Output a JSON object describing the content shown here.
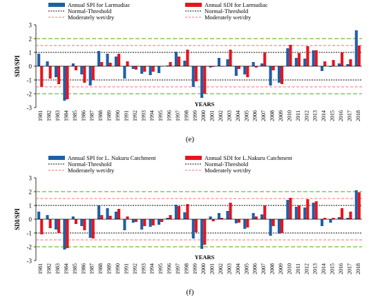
{
  "years": [
    "1981",
    "1982",
    "1983",
    "1984",
    "1985",
    "1986",
    "1987",
    "1988",
    "1989",
    "1990",
    "1991",
    "1992",
    "1993",
    "1994",
    "1995",
    "1996",
    "1997",
    "1998",
    "1999",
    "2000",
    "2001",
    "2002",
    "2003",
    "2004",
    "2005",
    "2006",
    "2007",
    "2008",
    "2009",
    "2010",
    "2011",
    "2012",
    "2013",
    "2014",
    "2015",
    "2016",
    "2017",
    "2018"
  ],
  "colors": {
    "spi": "#1f5fa6",
    "sdi": "#e8141c",
    "normal": "#000000",
    "moderate": "#f26b6b",
    "outer": "#77b82f"
  },
  "chart_data": [
    {
      "type": "bar",
      "panel_label": "(e)",
      "xlabel": "YEARS",
      "ylabel": "SDI/SPI",
      "ylim": [
        -3,
        3
      ],
      "yticks": [
        "-3",
        "-2",
        "-1",
        "0",
        "1",
        "2",
        "3"
      ],
      "thresholds": {
        "outer": [
          2,
          -2
        ],
        "moderate": [
          1.5,
          -1.5
        ],
        "normal": [
          1,
          -1
        ]
      },
      "legend": {
        "spi": "Annual SPI for Larmudiac",
        "sdi": "Annual SDI for Larmudiac",
        "normal": "Normal-Threshold",
        "normal_b": "Normal-Threshold",
        "moderate": "Moderately wet/dry",
        "moderate_b": "Moderately wet/dry"
      },
      "series": [
        {
          "name": "Annual SPI for Larmudiac",
          "values": [
            0.9,
            0.35,
            -0.8,
            -2.5,
            0.2,
            -0.6,
            -1.4,
            1.1,
            0.9,
            0.7,
            -0.9,
            -0.2,
            -0.55,
            -0.65,
            -0.5,
            0.05,
            1.05,
            0.4,
            -1.5,
            -2.3,
            -0.1,
            0.6,
            0.5,
            -0.7,
            -0.6,
            0.3,
            0.2,
            -1.4,
            -1.2,
            1.3,
            0.6,
            0.55,
            1.15,
            -0.35,
            -0.05,
            0.2,
            0.15,
            2.6
          ]
        },
        {
          "name": "Annual SDI for Larmudiac",
          "values": [
            -1.5,
            -0.9,
            -1.3,
            -2.4,
            -0.3,
            -1.2,
            -1.0,
            0.3,
            0.25,
            0.9,
            0.35,
            -0.25,
            -0.4,
            -0.4,
            0.0,
            0.3,
            0.7,
            1.2,
            -1.1,
            -2.0,
            -0.05,
            0.0,
            1.2,
            -0.2,
            -0.8,
            -0.1,
            1.0,
            -0.3,
            -1.3,
            1.55,
            0.95,
            1.45,
            1.15,
            0.35,
            0.45,
            1.0,
            0.5,
            1.5
          ]
        }
      ]
    },
    {
      "type": "bar",
      "panel_label": "(f)",
      "xlabel": "YEARS",
      "ylabel": "SDI/SPI",
      "ylim": [
        -3,
        3
      ],
      "yticks": [
        "-3",
        "-2",
        "-1",
        "0",
        "1",
        "2",
        "3"
      ],
      "thresholds": {
        "outer": [
          2,
          -2
        ],
        "moderate": [
          1.5,
          -1.5
        ],
        "normal": [
          1,
          -1
        ]
      },
      "legend": {
        "spi": "Annual SPI for L. Nakuru Catchment",
        "sdi": "Annual SDI for L.Nakuru Catchment",
        "normal": "Normal-Threshold",
        "normal_b": "Normal-Threshold",
        "moderate": "Moderately wet/dry",
        "moderate_b": "Moderately wet/dry"
      },
      "series": [
        {
          "name": "Annual SPI for L. Nakuru Catchment",
          "values": [
            0.55,
            0.3,
            -0.75,
            -2.2,
            0.2,
            -0.5,
            -1.35,
            1.0,
            0.8,
            0.55,
            -0.8,
            -0.25,
            -0.75,
            -0.55,
            -0.4,
            0.1,
            1.05,
            0.5,
            -1.4,
            -2.15,
            0.2,
            0.45,
            0.6,
            -0.3,
            -0.7,
            0.45,
            0.35,
            -1.2,
            -1.05,
            1.4,
            0.9,
            0.85,
            1.2,
            -0.5,
            -0.25,
            0.15,
            0.1,
            2.1
          ]
        },
        {
          "name": "Annual SDI for L.Nakuru Catchment",
          "values": [
            -1.1,
            -0.65,
            -1.0,
            -2.1,
            -0.35,
            -0.8,
            -1.4,
            0.3,
            0.25,
            0.75,
            0.2,
            -0.2,
            -0.5,
            -0.45,
            -0.2,
            0.3,
            0.95,
            1.1,
            -0.95,
            -1.85,
            -0.15,
            0.1,
            1.2,
            -0.25,
            -0.6,
            0.2,
            1.0,
            -0.5,
            -1.0,
            1.55,
            1.0,
            1.45,
            1.3,
            0.1,
            0.1,
            0.8,
            0.55,
            1.95
          ]
        }
      ]
    }
  ]
}
